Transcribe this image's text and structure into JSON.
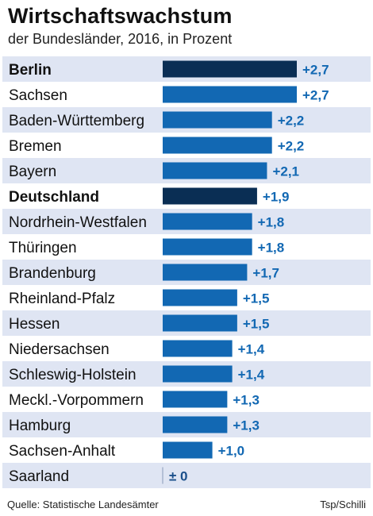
{
  "title": "Wirtschaftswachstum",
  "subtitle": "der Bundesländer, 2016, in Prozent",
  "source": "Quelle: Statistische Landesämter",
  "credit": "Tsp/Schilli",
  "colors": {
    "bar": "#1268b3",
    "bar_highlight": "#0a2e54",
    "value_text": "#1268b3",
    "stripe": "#dfe5f3",
    "zero_text": "#1a4f8a"
  },
  "chart_data": {
    "type": "bar",
    "orientation": "horizontal",
    "title": "Wirtschaftswachstum",
    "subtitle": "der Bundesländer, 2016, in Prozent",
    "categories": [
      "Berlin",
      "Sachsen",
      "Baden-Württemberg",
      "Bremen",
      "Bayern",
      "Deutschland",
      "Nordrhein-Westfalen",
      "Thüringen",
      "Brandenburg",
      "Rheinland-Pfalz",
      "Hessen",
      "Niedersachsen",
      "Schleswig-Holstein",
      "Meckl.-Vorpommern",
      "Hamburg",
      "Sachsen-Anhalt",
      "Saarland"
    ],
    "values": [
      2.7,
      2.7,
      2.2,
      2.2,
      2.1,
      1.9,
      1.8,
      1.8,
      1.7,
      1.5,
      1.5,
      1.4,
      1.4,
      1.3,
      1.3,
      1.0,
      0.0
    ],
    "value_labels": [
      "+2,7",
      "+2,7",
      "+2,2",
      "+2,2",
      "+2,1",
      "+1,9",
      "+1,8",
      "+1,8",
      "+1,7",
      "+1,5",
      "+1,5",
      "+1,4",
      "+1,4",
      "+1,3",
      "+1,3",
      "+1,0",
      "± 0"
    ],
    "highlighted": [
      "Berlin",
      "Deutschland"
    ],
    "xlim": [
      0,
      2.7
    ],
    "grid": false,
    "legend": "none"
  }
}
